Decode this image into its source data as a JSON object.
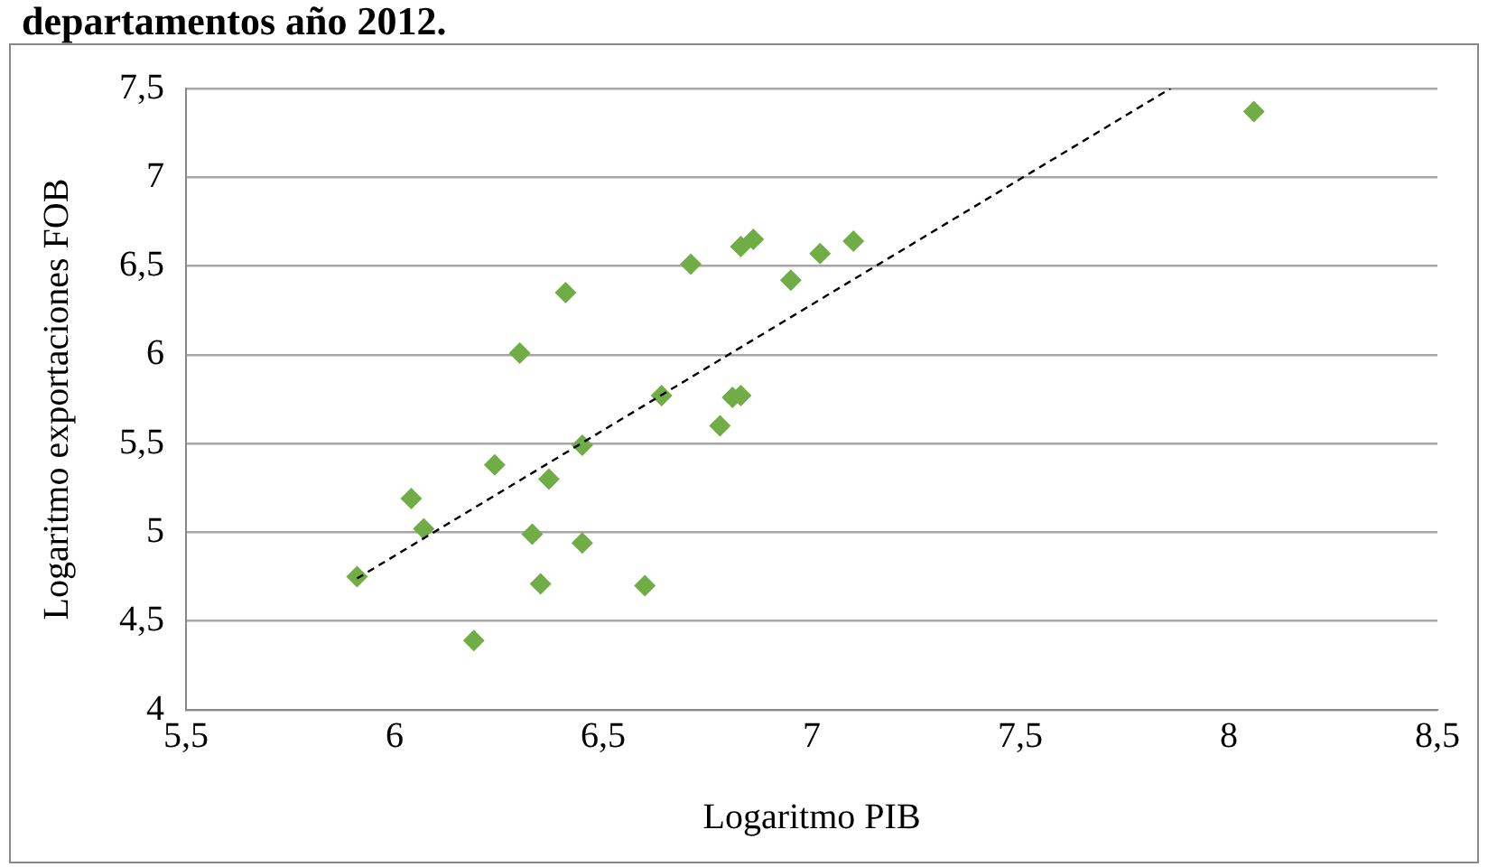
{
  "chart_data": {
    "type": "scatter",
    "title": "departamentos año 2012.",
    "xlabel": "Logaritmo PIB",
    "ylabel": "Logaritmo exportaciones FOB",
    "xlim": [
      5.5,
      8.5
    ],
    "xticks": [
      {
        "value": 5.5,
        "label": "5,5"
      },
      {
        "value": 6,
        "label": "6"
      },
      {
        "value": 6.5,
        "label": "6,5"
      },
      {
        "value": 7,
        "label": "7"
      },
      {
        "value": 7.5,
        "label": "7,5"
      },
      {
        "value": 8,
        "label": "8"
      },
      {
        "value": 8.5,
        "label": "8,5"
      }
    ],
    "ylim": [
      4,
      7.5
    ],
    "yticks": [
      {
        "value": 4,
        "label": "4"
      },
      {
        "value": 4.5,
        "label": "4,5"
      },
      {
        "value": 5,
        "label": "5"
      },
      {
        "value": 5.5,
        "label": "5,5"
      },
      {
        "value": 6,
        "label": "6"
      },
      {
        "value": 6.5,
        "label": "6,5"
      },
      {
        "value": 7,
        "label": "7"
      },
      {
        "value": 7.5,
        "label": "7,5"
      }
    ],
    "grid": "y",
    "legend": false,
    "marker": "diamond",
    "series": [
      {
        "color": "#70ad47",
        "x": [
          5.91,
          6.04,
          6.07,
          6.19,
          6.24,
          6.3,
          6.33,
          6.35,
          6.37,
          6.41,
          6.45,
          6.45,
          6.6,
          6.64,
          6.71,
          6.83,
          6.86,
          6.95,
          7.02,
          7.1,
          6.81,
          6.83,
          6.78,
          8.06
        ],
        "values": [
          4.75,
          5.19,
          5.02,
          4.39,
          5.38,
          6.01,
          4.99,
          4.71,
          5.3,
          6.35,
          4.94,
          5.49,
          4.7,
          5.77,
          6.51,
          6.61,
          6.65,
          6.42,
          6.57,
          6.64,
          5.76,
          5.77,
          5.6,
          7.37
        ]
      },
      {
        "type": "line",
        "color": "#000000",
        "line_style": "dashed",
        "marker": "none",
        "x": [
          5.91,
          7.86
        ],
        "values": [
          4.74,
          7.5
        ]
      }
    ]
  }
}
